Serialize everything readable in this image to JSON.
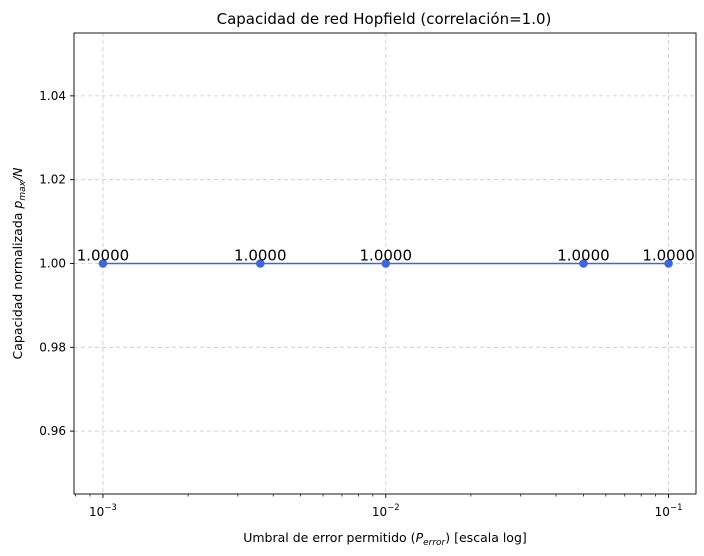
{
  "chart_data": {
    "type": "line",
    "title": "Capacidad de red Hopfield (correlación=1.0)",
    "xlabel": {
      "prefix": "Umbral de error permitido (",
      "var": "P",
      "sub": "error",
      "suffix": ") [escala log]"
    },
    "ylabel": {
      "prefix": "Capacidad normalizada ",
      "var": "p",
      "sub": "max",
      "suffix": "/N"
    },
    "x_scale": "log",
    "xlim": [
      0.00079,
      0.125
    ],
    "ylim": [
      0.945,
      1.055
    ],
    "x_ticks": [
      {
        "value": 0.001,
        "base": "10",
        "exp": "−3"
      },
      {
        "value": 0.01,
        "base": "10",
        "exp": "−2"
      },
      {
        "value": 0.1,
        "base": "10",
        "exp": "−1"
      }
    ],
    "y_ticks": [
      0.96,
      0.98,
      1.0,
      1.02,
      1.04
    ],
    "y_tick_labels": [
      "0.96",
      "0.98",
      "1.00",
      "1.02",
      "1.04"
    ],
    "grid": true,
    "series": [
      {
        "color": "#3f67d8",
        "marker": "circle",
        "x": [
          0.001,
          0.0036,
          0.01,
          0.05,
          0.1
        ],
        "y": [
          1.0,
          1.0,
          1.0,
          1.0,
          1.0
        ],
        "labels": [
          "1.0000",
          "1.0000",
          "1.0000",
          "1.0000",
          "1.0000"
        ]
      }
    ]
  }
}
